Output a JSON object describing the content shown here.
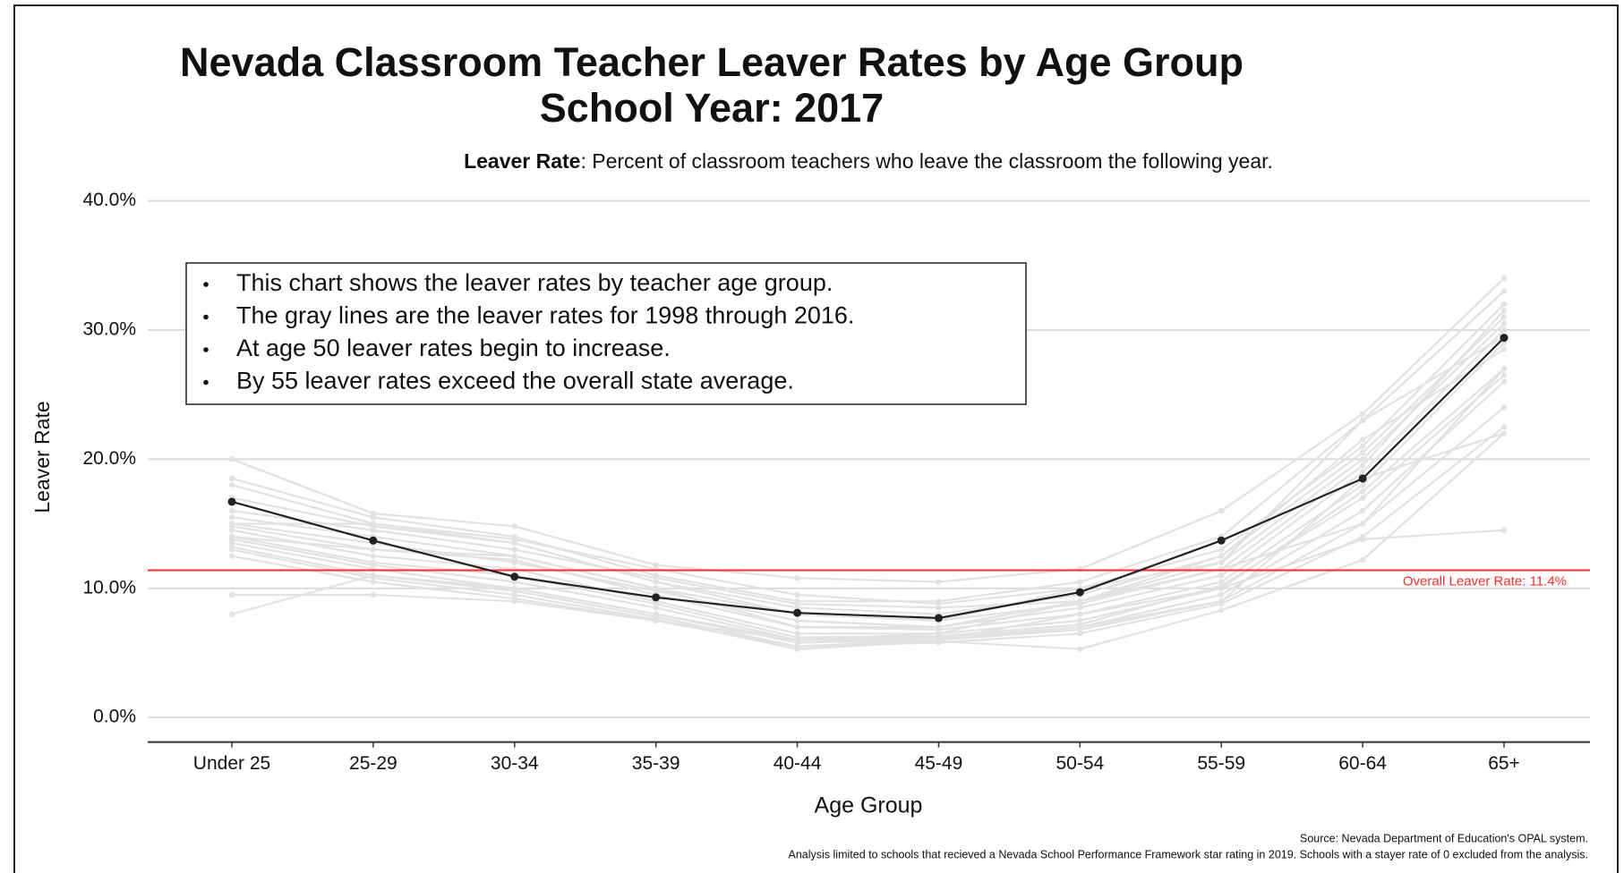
{
  "chart_data": {
    "type": "line",
    "title": [
      "Nevada Classroom Teacher Leaver Rates by Age Group",
      "School Year: 2017"
    ],
    "subtitle": {
      "term": "Leaver Rate",
      "text": ": Percent of classroom teachers who leave the classroom the following year."
    },
    "notes": [
      "This chart shows the leaver rates by teacher age group.",
      "The gray lines are the leaver rates for 1998 through 2016.",
      "At age 50 leaver rates begin to increase.",
      "By 55 leaver rates exceed the overall state average."
    ],
    "x_label": "Age Group",
    "y_label": "Leaver Rate",
    "categories": [
      "Under 25",
      "25-29",
      "30-34",
      "35-39",
      "40-44",
      "45-49",
      "50-54",
      "55-59",
      "60-64",
      "65+"
    ],
    "ylim": [
      -1.9,
      40
    ],
    "yticks": [
      {
        "value": 0,
        "label": "0.0%"
      },
      {
        "value": 10,
        "label": "10.0%"
      },
      {
        "value": 20,
        "label": "20.0%"
      },
      {
        "value": 30,
        "label": "30.0%"
      },
      {
        "value": 40,
        "label": "40.0%"
      }
    ],
    "grid": true,
    "reference_line": {
      "value": 11.4,
      "label": "Overall Leaver Rate: 11.4%",
      "color": "#ff2a2a"
    },
    "series": [
      {
        "color": "#e2e2e2",
        "values": [
          20.0,
          15.8,
          14.8,
          11.8,
          10.8,
          10.5,
          11.5,
          16.0,
          23.5,
          34.0
        ]
      },
      {
        "color": "#e2e2e2",
        "values": [
          18.5,
          15.5,
          14.0,
          11.0,
          9.0,
          9.0,
          10.5,
          14.0,
          23.0,
          33.0
        ]
      },
      {
        "color": "#e2e2e2",
        "values": [
          18.0,
          15.0,
          13.8,
          11.5,
          9.5,
          8.8,
          10.0,
          13.0,
          21.0,
          32.0
        ]
      },
      {
        "color": "#e2e2e2",
        "values": [
          17.0,
          14.8,
          13.5,
          10.5,
          8.5,
          8.0,
          9.5,
          12.5,
          20.5,
          31.0
        ]
      },
      {
        "color": "#e2e2e2",
        "values": [
          16.0,
          14.5,
          13.0,
          10.8,
          8.8,
          8.5,
          9.0,
          12.0,
          20.0,
          30.5
        ]
      },
      {
        "color": "#e2e2e2",
        "values": [
          15.5,
          14.0,
          12.5,
          10.0,
          8.0,
          7.5,
          8.8,
          11.5,
          19.5,
          31.5
        ]
      },
      {
        "color": "#e2e2e2",
        "values": [
          15.0,
          13.5,
          12.0,
          9.8,
          7.5,
          7.0,
          8.5,
          11.0,
          19.0,
          30.0
        ]
      },
      {
        "color": "#e2e2e2",
        "values": [
          14.8,
          13.0,
          12.2,
          9.5,
          7.0,
          6.8,
          8.0,
          10.5,
          18.0,
          29.0
        ]
      },
      {
        "color": "#e2e2e2",
        "values": [
          14.5,
          12.5,
          11.5,
          9.0,
          6.5,
          6.5,
          7.5,
          10.0,
          17.5,
          27.0
        ]
      },
      {
        "color": "#e2e2e2",
        "values": [
          14.0,
          12.0,
          11.0,
          8.8,
          6.2,
          6.3,
          7.2,
          10.2,
          17.0,
          26.5
        ]
      },
      {
        "color": "#e2e2e2",
        "values": [
          13.8,
          11.8,
          10.5,
          8.5,
          6.0,
          6.0,
          7.0,
          9.5,
          16.0,
          26.0
        ]
      },
      {
        "color": "#e2e2e2",
        "values": [
          13.5,
          11.5,
          10.0,
          8.0,
          5.8,
          6.0,
          6.8,
          9.0,
          15.0,
          24.0
        ]
      },
      {
        "color": "#e2e2e2",
        "values": [
          13.2,
          11.0,
          9.8,
          7.8,
          5.5,
          5.8,
          6.5,
          8.8,
          14.0,
          22.5
        ]
      },
      {
        "color": "#e2e2e2",
        "values": [
          13.0,
          10.8,
          9.5,
          7.6,
          5.3,
          5.9,
          5.3,
          8.3,
          12.2,
          22.0
        ]
      },
      {
        "color": "#e2e2e2",
        "values": [
          12.5,
          10.5,
          9.2,
          7.5,
          6.0,
          6.2,
          7.0,
          9.0,
          18.5,
          22.0
        ]
      },
      {
        "color": "#e2e2e2",
        "values": [
          9.5,
          9.5,
          9.0,
          7.5,
          5.5,
          6.0,
          8.0,
          10.0,
          13.8,
          14.5
        ]
      },
      {
        "color": "#e2e2e2",
        "values": [
          8.0,
          11.0,
          10.0,
          8.0,
          6.0,
          6.5,
          9.0,
          11.5,
          15.0,
          27.0
        ]
      },
      {
        "color": "#e2e2e2",
        "values": [
          14.0,
          13.0,
          12.5,
          10.0,
          7.0,
          7.0,
          9.0,
          12.5,
          21.5,
          28.5
        ]
      },
      {
        "color": "#e2e2e2",
        "values": [
          15.0,
          15.0,
          13.5,
          10.5,
          8.0,
          7.5,
          10.0,
          12.0,
          23.0,
          29.5
        ]
      },
      {
        "color": "#222222",
        "values": [
          16.7,
          13.7,
          10.9,
          9.3,
          8.1,
          7.7,
          9.7,
          13.7,
          18.5,
          29.4
        ]
      }
    ],
    "source": [
      "Source: Nevada Department of Education's OPAL system.",
      "Analysis limited to schools that recieved a Nevada School Performance Framework star rating in 2019. Schools with a stayer rate of 0 excluded from the analysis."
    ]
  }
}
